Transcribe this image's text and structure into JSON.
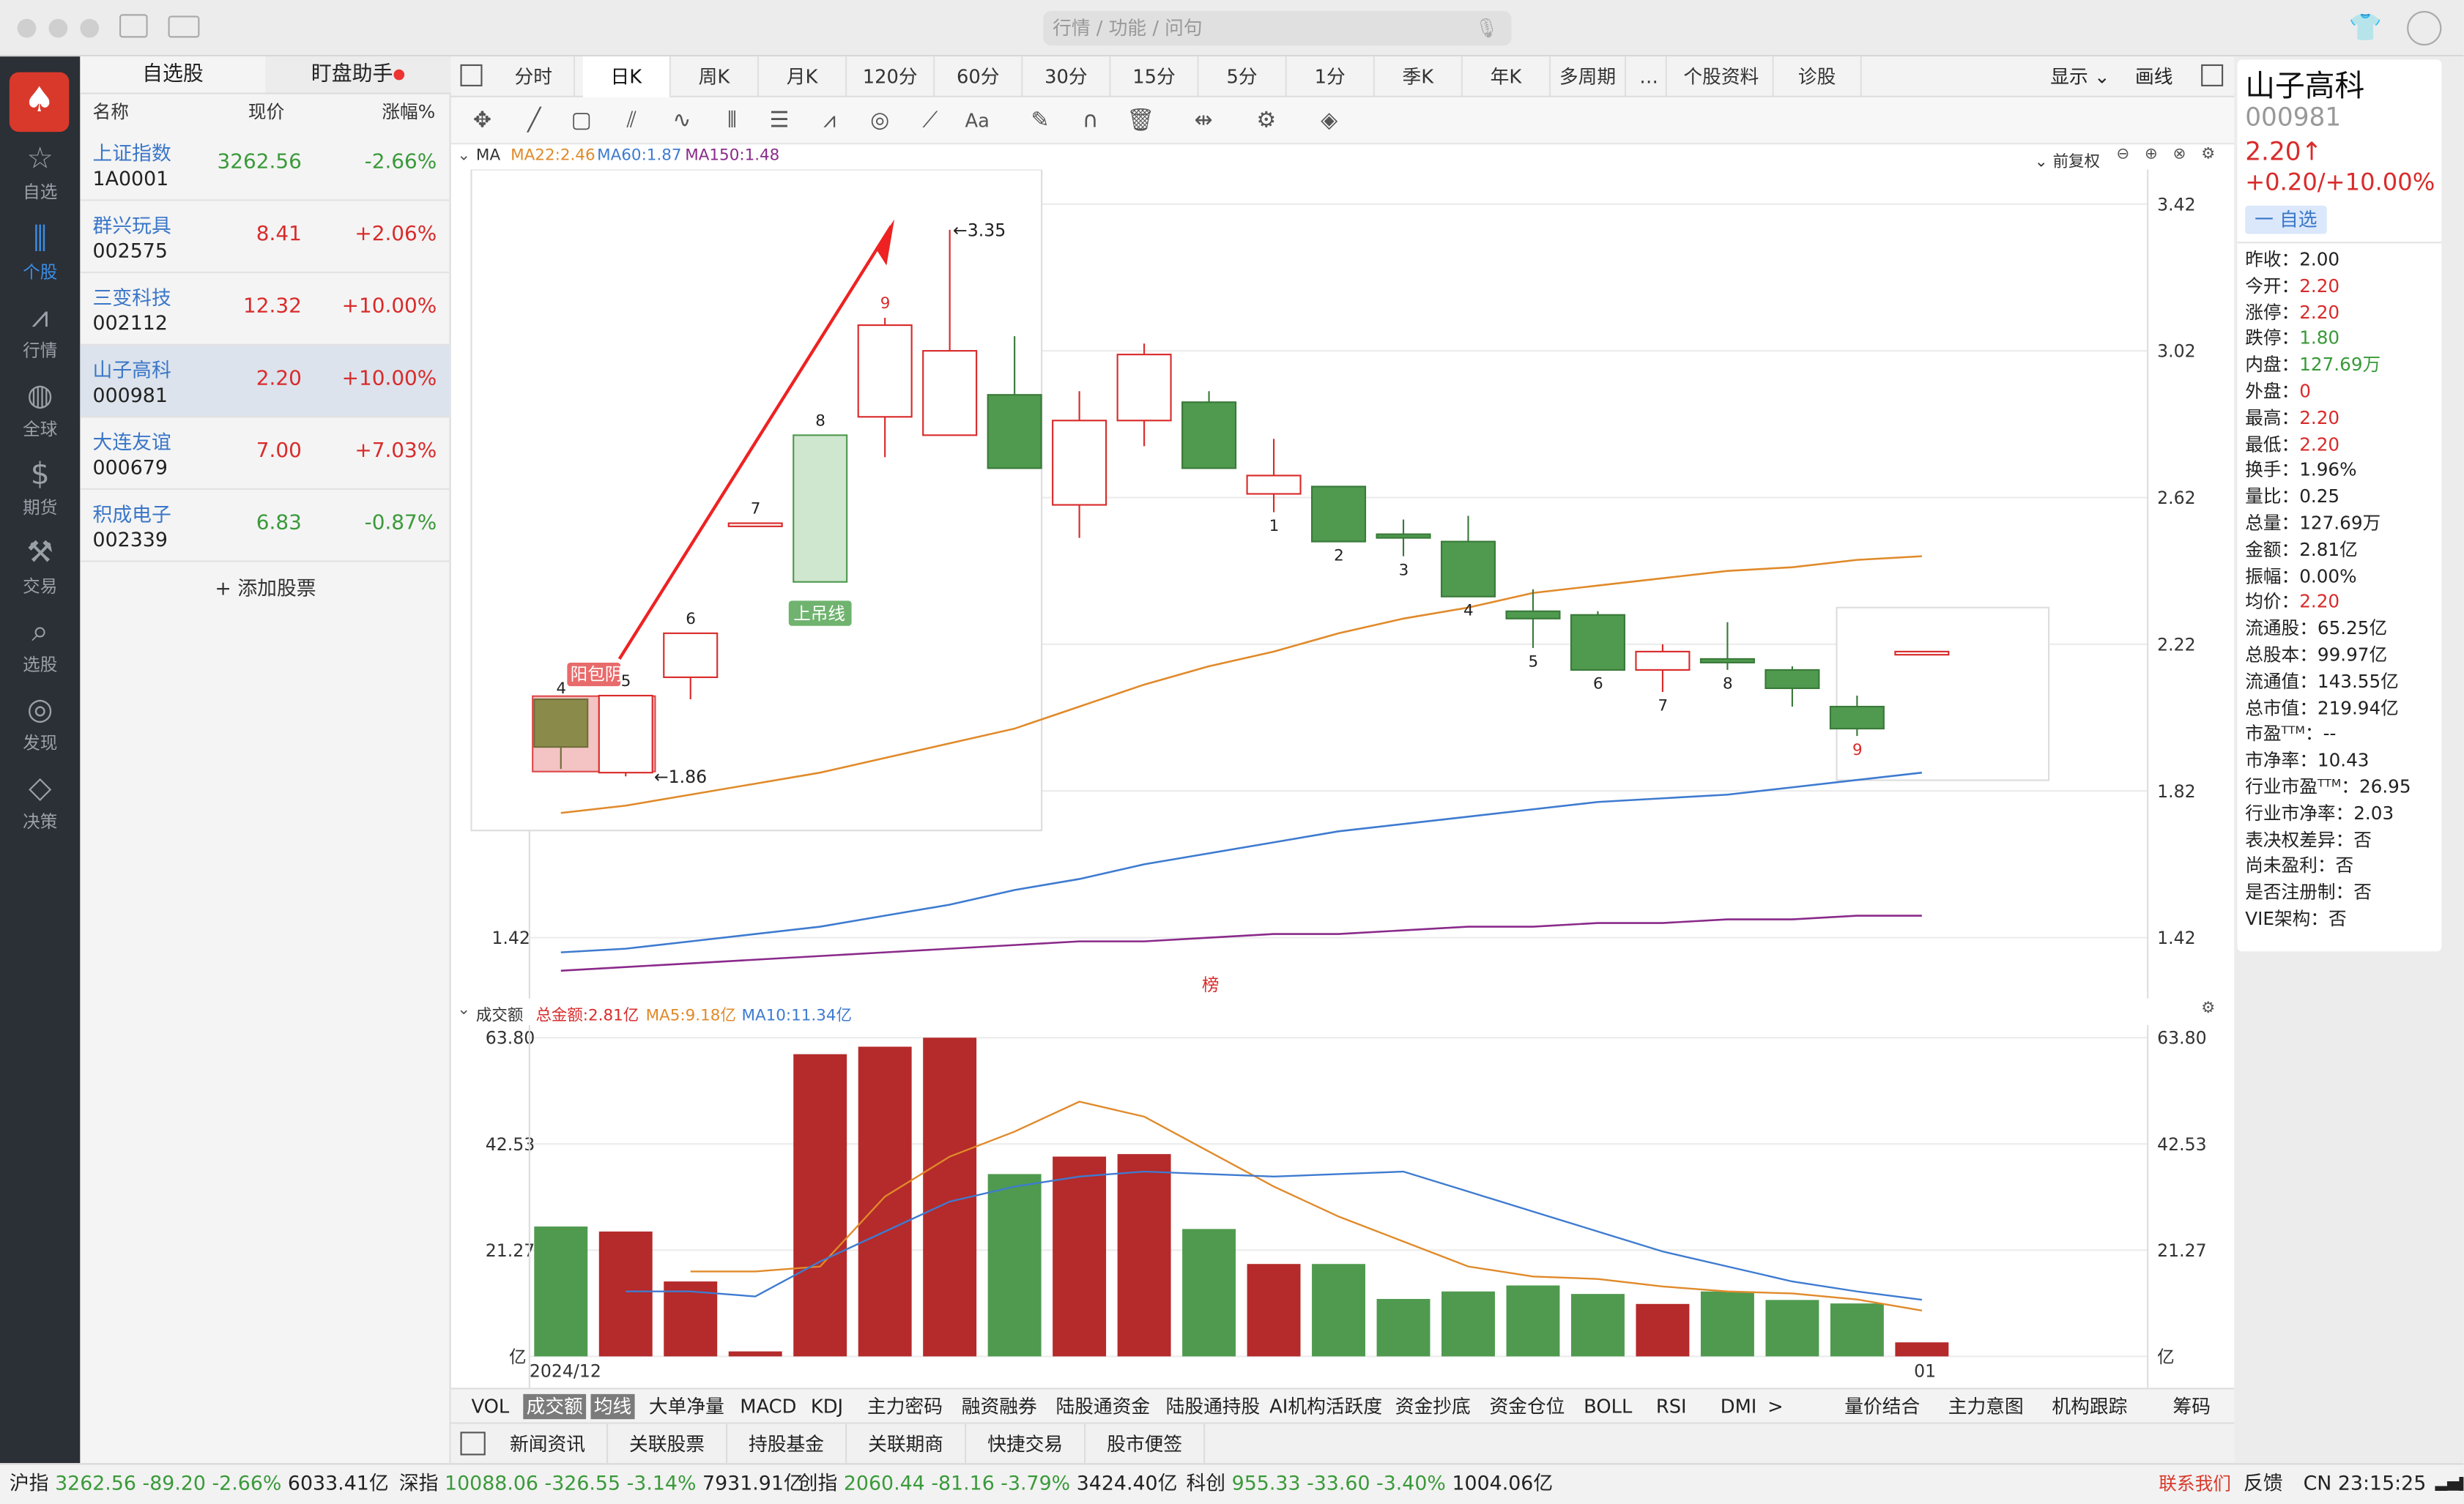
{
  "search": {
    "placeholder": "行情 / 功能 / 问句"
  },
  "nav": [
    {
      "label": "自选",
      "icon": "star-icon"
    },
    {
      "label": "个股",
      "icon": "candlestick-icon"
    },
    {
      "label": "行情",
      "icon": "trend-icon"
    },
    {
      "label": "全球",
      "icon": "globe-icon"
    },
    {
      "label": "期货",
      "icon": "futures-icon"
    },
    {
      "label": "交易",
      "icon": "trade-icon"
    },
    {
      "label": "选股",
      "icon": "stock-search-icon"
    },
    {
      "label": "发现",
      "icon": "compass-icon"
    },
    {
      "label": "决策",
      "icon": "decision-icon"
    }
  ],
  "watchlist": {
    "tabs": [
      "自选股",
      "盯盘助手"
    ],
    "headers": [
      "名称",
      "现价",
      "涨幅%"
    ],
    "rows": [
      {
        "name": "上证指数",
        "code": "1A0001",
        "price": "3262.56",
        "change": "-2.66%",
        "dir": "down"
      },
      {
        "name": "群兴玩具",
        "code": "002575",
        "price": "8.41",
        "change": "+2.06%",
        "dir": "up"
      },
      {
        "name": "三变科技",
        "code": "002112",
        "price": "12.32",
        "change": "+10.00%",
        "dir": "up"
      },
      {
        "name": "山子高科",
        "code": "000981",
        "price": "2.20",
        "change": "+10.00%",
        "dir": "up"
      },
      {
        "name": "大连友谊",
        "code": "000679",
        "price": "7.00",
        "change": "+7.03%",
        "dir": "up"
      },
      {
        "name": "积成电子",
        "code": "002339",
        "price": "6.83",
        "change": "-0.87%",
        "dir": "down"
      }
    ],
    "add_label": "+ 添加股票"
  },
  "period_tabs": [
    "分时",
    "日K",
    "周K",
    "月K",
    "120分",
    "60分",
    "30分",
    "15分",
    "5分",
    "1分",
    "季K",
    "年K",
    "多周期",
    "…",
    "个股资料",
    "诊股"
  ],
  "display_label": "显示",
  "line_label": "画线",
  "ma_legend": {
    "title": "MA",
    "ma22": "MA22:2.46",
    "ma60": "MA60:1.87",
    "ma150": "MA150:1.48",
    "adjust": "前复权"
  },
  "vol_legend": {
    "title": "成交额",
    "total": "总金额:2.81亿",
    "ma5": "MA5:9.18亿",
    "ma10": "MA10:11.34亿"
  },
  "chart_data": [
    {
      "type": "candlestick",
      "title": "山子高科 日K",
      "ylim": [
        1.28,
        3.48
      ],
      "yticks": [
        "3.42",
        "3.02",
        "2.62",
        "2.22",
        "1.82",
        "1.42"
      ],
      "candles": [
        {
          "o": 1.94,
          "h": 2.06,
          "l": 1.88,
          "c": 2.07,
          "color": "green"
        },
        {
          "o": 1.87,
          "h": 2.08,
          "l": 1.86,
          "c": 2.08,
          "color": "red"
        },
        {
          "o": 2.13,
          "h": 2.25,
          "l": 2.07,
          "c": 2.25,
          "color": "red"
        },
        {
          "o": 2.55,
          "h": 2.55,
          "l": 2.55,
          "c": 2.55,
          "color": "red"
        },
        {
          "o": 2.39,
          "h": 2.79,
          "l": 2.39,
          "c": 2.79,
          "color": "green-outline"
        },
        {
          "o": 2.84,
          "h": 3.11,
          "l": 2.73,
          "c": 3.09,
          "color": "red"
        },
        {
          "o": 2.79,
          "h": 3.35,
          "l": 2.79,
          "c": 3.02,
          "color": "red"
        },
        {
          "o": 2.7,
          "h": 3.06,
          "l": 2.7,
          "c": 2.9,
          "color": "green"
        },
        {
          "o": 2.6,
          "h": 2.91,
          "l": 2.51,
          "c": 2.83,
          "color": "red"
        },
        {
          "o": 2.83,
          "h": 3.04,
          "l": 2.76,
          "c": 3.01,
          "color": "red"
        },
        {
          "o": 2.7,
          "h": 2.91,
          "l": 2.7,
          "c": 2.88,
          "color": "green"
        },
        {
          "o": 2.63,
          "h": 2.78,
          "l": 2.58,
          "c": 2.68,
          "color": "red"
        },
        {
          "o": 2.5,
          "h": 2.65,
          "l": 2.5,
          "c": 2.65,
          "color": "green"
        },
        {
          "o": 2.51,
          "h": 2.56,
          "l": 2.46,
          "c": 2.52,
          "color": "green"
        },
        {
          "o": 2.35,
          "h": 2.57,
          "l": 2.35,
          "c": 2.5,
          "color": "green"
        },
        {
          "o": 2.29,
          "h": 2.37,
          "l": 2.21,
          "c": 2.31,
          "color": "green"
        },
        {
          "o": 2.15,
          "h": 2.31,
          "l": 2.15,
          "c": 2.3,
          "color": "green"
        },
        {
          "o": 2.15,
          "h": 2.22,
          "l": 2.09,
          "c": 2.2,
          "color": "red"
        },
        {
          "o": 2.17,
          "h": 2.28,
          "l": 2.15,
          "c": 2.18,
          "color": "green"
        },
        {
          "o": 2.1,
          "h": 2.16,
          "l": 2.05,
          "c": 2.15,
          "color": "green"
        },
        {
          "o": 1.99,
          "h": 2.08,
          "l": 1.97,
          "c": 2.05,
          "color": "green"
        },
        {
          "o": 2.2,
          "h": 2.2,
          "l": 2.2,
          "c": 2.2,
          "color": "red"
        }
      ],
      "annotations": {
        "high": "←3.35",
        "low": "←1.86",
        "engulf": "阳包阴",
        "hanging": "上吊线",
        "bang": "榜",
        "counts": [
          "4",
          "5",
          "6",
          "7",
          "8",
          "9",
          "1",
          "2",
          "3",
          "4",
          "5",
          "6",
          "7",
          "8",
          "9"
        ]
      },
      "series": [
        {
          "name": "MA22",
          "color": "#e08a2a",
          "values": [
            1.76,
            1.78,
            1.81,
            1.84,
            1.87,
            1.91,
            1.95,
            1.99,
            2.05,
            2.11,
            2.16,
            2.2,
            2.25,
            2.29,
            2.32,
            2.36,
            2.38,
            2.4,
            2.42,
            2.43,
            2.45,
            2.46
          ]
        },
        {
          "name": "MA60",
          "color": "#3e7bd0",
          "values": [
            1.38,
            1.39,
            1.41,
            1.43,
            1.45,
            1.48,
            1.51,
            1.55,
            1.58,
            1.62,
            1.65,
            1.68,
            1.71,
            1.73,
            1.75,
            1.77,
            1.79,
            1.8,
            1.81,
            1.83,
            1.85,
            1.87
          ]
        },
        {
          "name": "MA150",
          "color": "#8a2a8a",
          "values": [
            1.33,
            1.34,
            1.35,
            1.36,
            1.37,
            1.38,
            1.39,
            1.4,
            1.41,
            1.41,
            1.42,
            1.43,
            1.43,
            1.44,
            1.45,
            1.45,
            1.46,
            1.46,
            1.47,
            1.47,
            1.48,
            1.48
          ]
        }
      ]
    },
    {
      "type": "bar",
      "title": "成交额",
      "ylim": [
        0,
        63.8
      ],
      "yticks": [
        "63.80",
        "42.53",
        "21.27",
        "亿"
      ],
      "x_label_start": "2024/12",
      "x_label_mid": "01",
      "values": [
        26,
        25,
        15,
        1,
        60.5,
        62,
        63.8,
        36.5,
        40,
        40.5,
        25.5,
        18.5,
        18.5,
        11.5,
        13,
        14.2,
        12.5,
        10.5,
        13,
        11.3,
        10.6,
        2.81
      ],
      "colors": [
        "green",
        "red",
        "red",
        "red",
        "red",
        "red",
        "red",
        "green",
        "red",
        "red",
        "green",
        "red",
        "green",
        "green",
        "green",
        "green",
        "green",
        "red",
        "green",
        "green",
        "green",
        "red"
      ],
      "series": [
        {
          "name": "MA5",
          "color": "#e08a2a",
          "values": [
            null,
            null,
            17,
            17,
            18,
            32,
            40,
            45,
            51,
            48,
            41,
            34,
            28,
            23,
            18,
            16,
            15.5,
            14,
            13,
            12.6,
            11.4,
            9.18
          ]
        },
        {
          "name": "MA10",
          "color": "#3e7bd0",
          "values": [
            null,
            13,
            13,
            12,
            19,
            25,
            31,
            34,
            36,
            37,
            36.5,
            36,
            36.5,
            37,
            33,
            29,
            25,
            21,
            18,
            15,
            13,
            11.34
          ]
        }
      ]
    }
  ],
  "indicator_tabs": [
    "VOL",
    "成交额",
    "均线",
    "大单净量",
    "MACD",
    "KDJ",
    "主力密码",
    "融资融券",
    "陆股通资金",
    "陆股通持股",
    "AI机构活跃度",
    "资金抄底",
    "资金仓位",
    "BOLL",
    "RSI",
    "DMI",
    ">",
    "量价结合",
    "主力意图",
    "机构跟踪",
    "筹码"
  ],
  "news_tabs": [
    "新闻资讯",
    "关联股票",
    "持股基金",
    "关联期商",
    "快捷交易",
    "股市便签"
  ],
  "quote": {
    "name": "山子高科",
    "code": "000981",
    "price": "2.20↑",
    "change": "+0.20/+10.00%",
    "remove_label": "一 自选",
    "rows": [
      {
        "label": "昨收：",
        "value": "2.00",
        "color": "#222"
      },
      {
        "label": "今开：",
        "value": "2.20",
        "color": "#d92b2b"
      },
      {
        "label": "涨停：",
        "value": "2.20",
        "color": "#d92b2b"
      },
      {
        "label": "跌停：",
        "value": "1.80",
        "color": "#3a9a3a"
      },
      {
        "label": "内盘：",
        "value": "127.69万",
        "color": "#3a9a3a"
      },
      {
        "label": "外盘：",
        "value": "0",
        "color": "#d92b2b"
      },
      {
        "label": "最高：",
        "value": "2.20",
        "color": "#d92b2b"
      },
      {
        "label": "最低：",
        "value": "2.20",
        "color": "#d92b2b"
      },
      {
        "label": "换手：",
        "value": "1.96%",
        "color": "#222"
      },
      {
        "label": "量比：",
        "value": "0.25",
        "color": "#222"
      },
      {
        "label": "总量：",
        "value": "127.69万",
        "color": "#222"
      },
      {
        "label": "金额：",
        "value": "2.81亿",
        "color": "#222"
      },
      {
        "label": "振幅：",
        "value": "0.00%",
        "color": "#222"
      },
      {
        "label": "均价：",
        "value": "2.20",
        "color": "#d92b2b"
      },
      {
        "label": "流通股：",
        "value": "65.25亿",
        "color": "#222"
      },
      {
        "label": "总股本：",
        "value": "99.97亿",
        "color": "#222"
      },
      {
        "label": "流通值：",
        "value": "143.55亿",
        "color": "#222"
      },
      {
        "label": "总市值：",
        "value": "219.94亿",
        "color": "#222"
      },
      {
        "label": "市盈ᵀᵀᴹ：",
        "value": "--",
        "color": "#222"
      },
      {
        "label": "市净率：",
        "value": "10.43",
        "color": "#222"
      },
      {
        "label": "行业市盈ᵀᵀᴹ：",
        "value": "26.95",
        "color": "#222"
      },
      {
        "label": "行业市净率：",
        "value": "2.03",
        "color": "#222"
      },
      {
        "label": "表决权差异：",
        "value": "否",
        "color": "#222"
      },
      {
        "label": "尚未盈利：",
        "value": "否",
        "color": "#222"
      },
      {
        "label": "是否注册制：",
        "value": "否",
        "color": "#222"
      },
      {
        "label": "VIE架构：",
        "value": "否",
        "color": "#222"
      }
    ]
  },
  "statusbar": {
    "sh": {
      "label": "沪指",
      "price": "3262.56",
      "chg": "-89.20",
      "pct": "-2.66%",
      "amt": "6033.41亿"
    },
    "sz": {
      "label": "深指",
      "price": "10088.06",
      "chg": "-326.55",
      "pct": "-3.14%",
      "amt": "7931.91亿"
    },
    "cy": {
      "label": "创指",
      "price": "2060.44",
      "chg": "-81.16",
      "pct": "-3.79%",
      "amt": "3424.40亿"
    },
    "kc": {
      "label": "科创",
      "price": "955.33",
      "chg": "-33.60",
      "pct": "-3.40%",
      "amt": "1004.06亿"
    },
    "contact": "联系我们",
    "feedback": "反馈",
    "time": "CN 23:15:25"
  }
}
